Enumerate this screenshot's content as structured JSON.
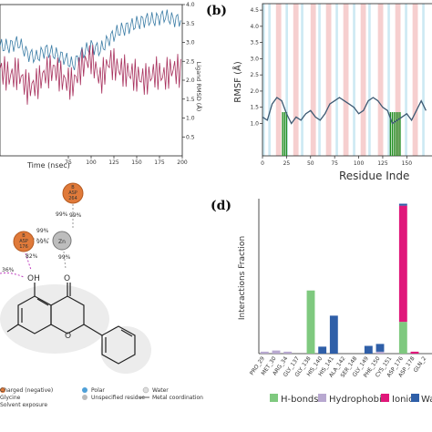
{
  "panels": {
    "b": "(b)",
    "d": "(d)"
  },
  "chart_data": [
    {
      "type": "line",
      "panel": "a",
      "xlabel": "Time (nsec)",
      "ylabel_right": "Ligand RMSD (Å)",
      "xlim": [
        0,
        200
      ],
      "ylim_right": [
        0,
        4.0
      ],
      "x_ticks": [
        "75",
        "100",
        "125",
        "150",
        "175",
        "200"
      ],
      "y_ticks_right": [
        "0.5",
        "1.0",
        "1.5",
        "2.0",
        "2.5",
        "3.0",
        "3.5",
        "4.0"
      ],
      "series": [
        {
          "color": "#3a7ca5",
          "x": [
            0,
            10,
            20,
            30,
            40,
            50,
            60,
            70,
            80,
            90,
            100,
            110,
            120,
            130,
            140,
            150,
            160,
            170,
            180,
            190,
            200
          ],
          "values": [
            2.9,
            2.9,
            3.0,
            2.7,
            2.6,
            2.8,
            2.7,
            2.6,
            2.4,
            2.7,
            2.9,
            2.8,
            3.1,
            3.3,
            3.4,
            3.5,
            3.6,
            3.6,
            3.7,
            3.6,
            3.6
          ]
        },
        {
          "color": "#a8325e",
          "x": [
            0,
            10,
            20,
            30,
            40,
            50,
            60,
            70,
            80,
            90,
            100,
            110,
            120,
            130,
            140,
            150,
            160,
            170,
            180,
            190,
            200
          ],
          "values": [
            2.3,
            2.1,
            2.2,
            1.8,
            1.9,
            2.2,
            2.3,
            2.0,
            1.9,
            2.4,
            2.6,
            2.0,
            2.5,
            2.3,
            2.2,
            2.1,
            2.0,
            2.2,
            2.1,
            2.3,
            2.2
          ]
        }
      ]
    },
    {
      "type": "line",
      "panel": "b",
      "xlabel": "Residue Inde",
      "ylabel": "RMSF (Å)",
      "ylim": [
        0,
        4.7
      ],
      "y_ticks": [
        "1.0",
        "1.5",
        "2.0",
        "2.5",
        "3.0",
        "3.5",
        "4.0",
        "4.5"
      ],
      "x_ticks": [
        "0",
        "25",
        "50",
        "75",
        "100",
        "125",
        "150"
      ],
      "series": [
        {
          "color": "#3d5a73",
          "x": [
            0,
            5,
            10,
            15,
            20,
            25,
            30,
            35,
            40,
            45,
            50,
            55,
            60,
            65,
            70,
            75,
            80,
            85,
            90,
            95,
            100,
            105,
            110,
            115,
            120,
            125,
            130,
            135,
            140,
            145,
            150,
            155,
            160,
            165,
            170
          ],
          "values": [
            1.2,
            1.1,
            1.6,
            1.8,
            1.7,
            1.3,
            1.0,
            1.2,
            1.1,
            1.3,
            1.4,
            1.2,
            1.1,
            1.3,
            1.6,
            1.7,
            1.8,
            1.7,
            1.6,
            1.5,
            1.3,
            1.4,
            1.7,
            1.8,
            1.7,
            1.5,
            1.4,
            1.0,
            1.1,
            1.2,
            1.3,
            1.1,
            1.4,
            1.7,
            1.4
          ]
        }
      ]
    },
    {
      "type": "diagram",
      "panel": "c",
      "nodes": [
        {
          "chain": "B",
          "name": "ASP",
          "num": "264"
        },
        {
          "chain": "B",
          "name": "ASP",
          "num": "176"
        },
        {
          "name": "Zn"
        },
        {
          "name": "OH"
        },
        {
          "name": "O"
        }
      ],
      "edge_labels": [
        "99%",
        "99%",
        "99%",
        "99%",
        "99%",
        "82%",
        "36%"
      ],
      "legend": [
        "Charged (negative)",
        "Polar",
        "Water",
        "Glycine",
        "Unspecified residue",
        "Metal coordination",
        "Solvent exposure"
      ]
    },
    {
      "type": "bar",
      "panel": "d",
      "ylabel": "Interactions Fraction",
      "ylim": [
        0,
        4.0
      ],
      "categories": [
        "PRO_29",
        "MET_30",
        "ARG_34",
        "GLY_137",
        "GLY_138",
        "HIS_140",
        "HIS_141",
        "ALA_142",
        "SER_148",
        "GLY_149",
        "PHE_150",
        "CYS_151",
        "ASP_176",
        "ASP_178",
        "GLN_2"
      ],
      "series": [
        {
          "name": "H-bonds",
          "color": "#7fc97f",
          "values": [
            0,
            0,
            0,
            0,
            1.63,
            0,
            0,
            0,
            0,
            0,
            0,
            0,
            0.82,
            0,
            0
          ]
        },
        {
          "name": "Hydrophobic",
          "color": "#b8a8d0",
          "values": [
            0.05,
            0.08,
            0.05,
            0,
            0,
            0,
            0,
            0,
            0,
            0,
            0.05,
            0,
            0,
            0,
            0
          ]
        },
        {
          "name": "Ionic",
          "color": "#e0177a",
          "values": [
            0,
            0,
            0,
            0,
            0,
            0,
            0,
            0,
            0,
            0,
            0,
            0,
            3.0,
            0.05,
            0
          ]
        },
        {
          "name": "Wa",
          "color": "#2f5fa8",
          "values": [
            0,
            0,
            0,
            0,
            0,
            0.18,
            0.98,
            0,
            0,
            0.2,
            0.2,
            0,
            0.05,
            0,
            0
          ]
        }
      ],
      "legend": [
        "H-bonds",
        "Hydrophobic",
        "Ionic",
        "Wa"
      ]
    }
  ]
}
